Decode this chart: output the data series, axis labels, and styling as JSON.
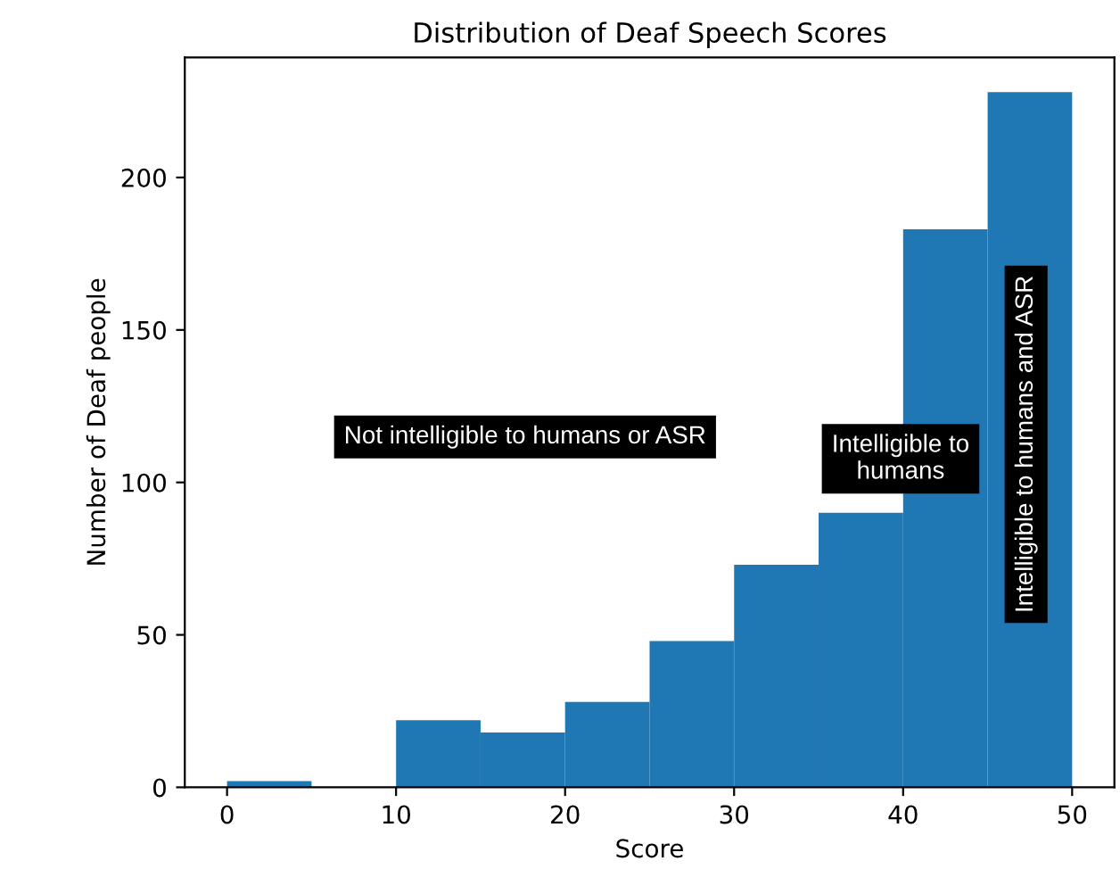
{
  "chart_data": {
    "type": "histogram",
    "title": "Distribution of Deaf Speech Scores",
    "xlabel": "Score",
    "ylabel": "Number of Deaf people",
    "bins": [
      0,
      5,
      10,
      15,
      20,
      25,
      30,
      35,
      40,
      45,
      50
    ],
    "values": [
      2,
      0,
      22,
      18,
      28,
      48,
      73,
      90,
      183,
      228
    ],
    "color": "#1f77b4",
    "xlim": [
      -2.5,
      52.5
    ],
    "xticks": [
      0,
      10,
      20,
      30,
      40,
      50
    ],
    "ylim": [
      0,
      239.4
    ],
    "yticks": [
      0,
      50,
      100,
      150,
      200
    ],
    "annotations": [
      "Not intelligible to humans or ASR",
      "Intelligible to\nhumans",
      "Intelligible to humans and ASR"
    ]
  }
}
